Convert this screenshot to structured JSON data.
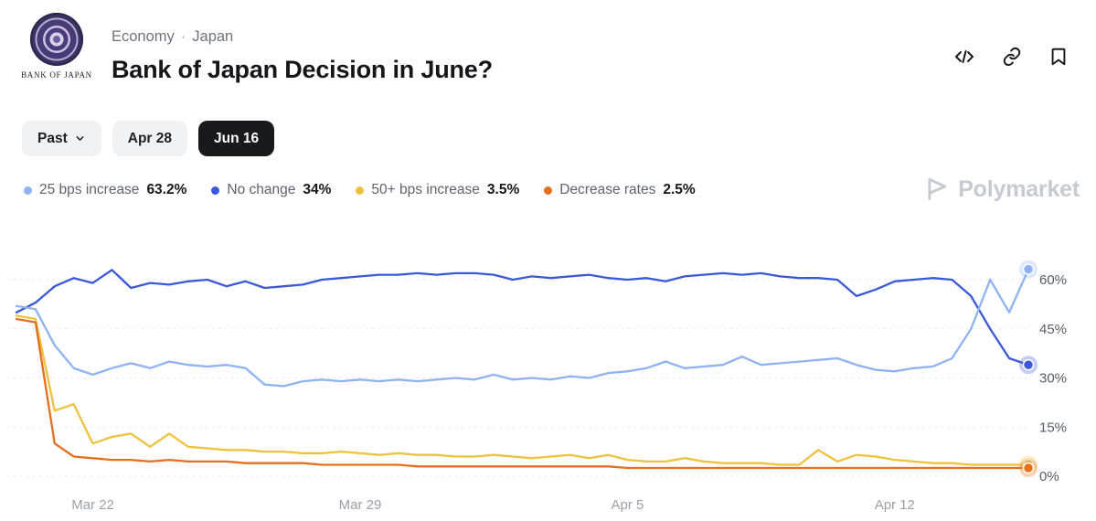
{
  "header": {
    "logo_caption": "BANK OF JAPAN",
    "breadcrumb": {
      "category": "Economy",
      "separator": "·",
      "topic": "Japan"
    },
    "title": "Bank of Japan Decision in June?"
  },
  "actions": {
    "icons": [
      "embed-code-icon",
      "copy-link-icon",
      "bookmark-icon"
    ]
  },
  "toolbar": {
    "filters": [
      {
        "label": "Past",
        "type": "dropdown",
        "selected": false
      },
      {
        "label": "Apr 28",
        "type": "tab",
        "selected": false
      },
      {
        "label": "Jun 16",
        "type": "tab",
        "selected": true
      }
    ]
  },
  "watermark": {
    "text": "Polymarket"
  },
  "chart_data": {
    "type": "line",
    "title": "Bank of Japan Decision in June?",
    "grid": "dashed-horizontal",
    "legend_position": "top",
    "y_ticks": [
      0,
      15,
      30,
      45,
      60
    ],
    "y_tick_suffix": "%",
    "ylim": [
      0,
      67
    ],
    "x_day_range": [
      0,
      26.5
    ],
    "x_label_ticks": [
      {
        "day": 2,
        "label": "Mar 22"
      },
      {
        "day": 9,
        "label": "Mar 29"
      },
      {
        "day": 16,
        "label": "Apr 5"
      },
      {
        "day": 23,
        "label": "Apr 12"
      }
    ],
    "x_days": [
      0,
      0.5,
      1,
      1.5,
      2,
      2.5,
      3,
      3.5,
      4,
      4.5,
      5,
      5.5,
      6,
      6.5,
      7,
      7.5,
      8,
      8.5,
      9,
      9.5,
      10,
      10.5,
      11,
      11.5,
      12,
      12.5,
      13,
      13.5,
      14,
      14.5,
      15,
      15.5,
      16,
      16.5,
      17,
      17.5,
      18,
      18.5,
      19,
      19.5,
      20,
      20.5,
      21,
      21.5,
      22,
      22.5,
      23,
      23.5,
      24,
      24.5,
      25,
      25.5,
      26,
      26.5
    ],
    "series": [
      {
        "name": "25 bps increase",
        "current": "63.2%",
        "color": "#8fb3f2",
        "end_marker": true,
        "values": [
          52,
          51,
          40,
          33,
          31,
          33,
          34.5,
          33,
          35,
          34,
          33.5,
          34,
          33,
          28,
          27.5,
          29,
          29.5,
          29,
          29.5,
          29,
          29.5,
          29,
          29.5,
          30,
          29.5,
          31,
          29.5,
          30,
          29.5,
          30.5,
          30,
          31.5,
          32,
          33,
          35,
          33,
          33.5,
          34,
          36.5,
          34,
          34.5,
          35,
          35.5,
          36,
          34,
          32.5,
          32,
          33,
          33.5,
          36,
          45,
          60,
          50,
          63.2
        ]
      },
      {
        "name": "No change",
        "current": "34%",
        "color": "#3a58d8",
        "end_marker": true,
        "values": [
          50,
          53,
          58,
          60.5,
          59,
          63,
          57.5,
          59,
          58.5,
          59.5,
          60,
          58,
          59.5,
          57.5,
          58,
          58.5,
          60,
          60.5,
          61,
          61.5,
          61.5,
          62,
          61.5,
          62,
          62,
          61.5,
          60,
          61,
          60.5,
          61,
          61.5,
          60.5,
          60,
          60.5,
          59.5,
          61,
          61.5,
          62,
          61.5,
          62,
          61,
          60.5,
          60.5,
          60,
          55,
          57,
          59.5,
          60,
          60.5,
          60,
          55,
          45,
          36,
          34
        ]
      },
      {
        "name": "50+ bps increase",
        "current": "3.5%",
        "color": "#edc23c",
        "end_marker": true,
        "values": [
          49,
          48,
          20,
          22,
          10,
          12,
          13,
          9,
          13,
          9,
          8.5,
          8,
          8,
          7.5,
          7.5,
          7,
          7,
          7.5,
          7,
          6.5,
          7,
          6.5,
          6.5,
          6,
          6,
          6.5,
          6,
          5.5,
          6,
          6.5,
          5.5,
          6.5,
          5,
          4.5,
          4.5,
          5.5,
          4.5,
          4,
          4,
          4,
          3.5,
          3.5,
          8,
          4.5,
          6.5,
          6,
          5,
          4.5,
          4,
          4,
          3.5,
          3.5,
          3.5,
          3.5
        ]
      },
      {
        "name": "Decrease rates",
        "current": "2.5%",
        "color": "#e56f1e",
        "end_marker": true,
        "values": [
          48,
          47,
          10,
          6,
          5.5,
          5,
          5,
          4.5,
          5,
          4.5,
          4.5,
          4.5,
          4,
          4,
          4,
          4,
          3.5,
          3.5,
          3.5,
          3.5,
          3.5,
          3,
          3,
          3,
          3,
          3,
          3,
          3,
          3,
          3,
          3,
          3,
          2.5,
          2.5,
          2.5,
          2.5,
          2.5,
          2.5,
          2.5,
          2.5,
          2.5,
          2.5,
          2.5,
          2.5,
          2.5,
          2.5,
          2.5,
          2.5,
          2.5,
          2.5,
          2.5,
          2.5,
          2.5,
          2.5
        ]
      }
    ]
  }
}
